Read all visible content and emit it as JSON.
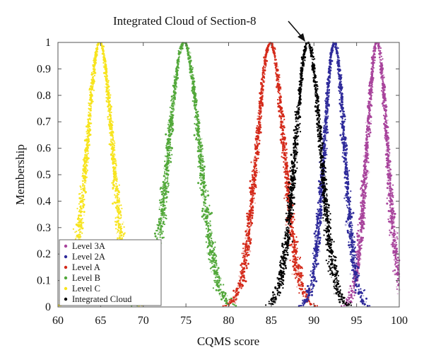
{
  "chart_data": {
    "type": "scatter",
    "title": "",
    "xlabel": "CQMS score",
    "ylabel": "Membership",
    "xlim": [
      60,
      100
    ],
    "ylim": [
      0,
      1
    ],
    "xticks": [
      "60",
      "65",
      "70",
      "75",
      "80",
      "85",
      "90",
      "95",
      "100"
    ],
    "yticks": [
      "0",
      "0.1",
      "0.2",
      "0.3",
      "0.4",
      "0.5",
      "0.6",
      "0.7",
      "0.8",
      "0.9",
      "1"
    ],
    "grid": false,
    "legend": "bottom-left",
    "annotation": {
      "text": "Integrated Cloud of Section-8",
      "points_to": {
        "x": 89.3,
        "y": 1.0
      }
    },
    "series": [
      {
        "name": "Level 3A",
        "color": "#a8449c",
        "center": 97.4,
        "spread": 1.2
      },
      {
        "name": "Level 2A",
        "color": "#2e2a9a",
        "center": 92.4,
        "spread": 1.2
      },
      {
        "name": "Level A",
        "color": "#d42a1a",
        "center": 84.9,
        "spread": 1.6
      },
      {
        "name": "Level B",
        "color": "#52a83a",
        "center": 74.8,
        "spread": 1.8
      },
      {
        "name": "Level C",
        "color": "#f7e41e",
        "center": 64.9,
        "spread": 1.5
      },
      {
        "name": "Integrated Cloud",
        "color": "#000000",
        "center": 89.3,
        "spread": 1.5
      }
    ]
  }
}
